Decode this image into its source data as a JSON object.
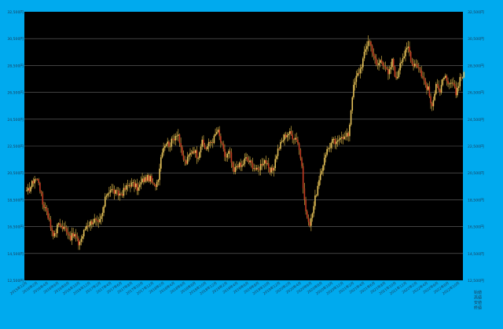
{
  "colors": {
    "frame": "#00aaee",
    "plot_background": "#000000",
    "gridline": "#6a6a6a",
    "candle_body": "#e6c25a",
    "candle_wick": "#c9a640",
    "candle_down": "#c23b22",
    "tick_text": "#1a3a55"
  },
  "chart_data": {
    "type": "candlestick",
    "title": "",
    "xlabel": "",
    "ylabel": "",
    "currency_unit": "円",
    "ylim": [
      12500,
      32500
    ],
    "yticks": [
      "12,500円",
      "14,500円",
      "16,500円",
      "18,500円",
      "20,500円",
      "22,500円",
      "24,500円",
      "26,500円",
      "28,500円",
      "30,500円",
      "32,500円"
    ],
    "grid": true,
    "legend_position": "bottom-right",
    "legend_entries": [
      "始値",
      "高値",
      "安値",
      "終値"
    ],
    "x_tick_labels": [
      "2015年12月",
      "2016年2月",
      "2016年4月",
      "2016年6月",
      "2016年8月",
      "2016年10月",
      "2016年12月",
      "2017年2月",
      "2017年4月",
      "2017年6月",
      "2017年8月",
      "2017年10月",
      "2017年12月",
      "2018年2月",
      "2018年4月",
      "2018年6月",
      "2018年8月",
      "2018年10月",
      "2018年12月",
      "2019年2月",
      "2019年4月",
      "2019年6月",
      "2019年8月",
      "2019年10月",
      "2019年12月",
      "2020年2月",
      "2020年4月",
      "2020年6月",
      "2020年8月",
      "2020年10月",
      "2020年12月",
      "2021年2月",
      "2021年4月",
      "2021年6月",
      "2021年8月",
      "2021年10月",
      "2021年12月",
      "2022年2月",
      "2022年4月",
      "2022年6月",
      "2022年8月",
      "2022年10月"
    ],
    "price_path": [
      19000,
      19500,
      20100,
      19900,
      18200,
      17800,
      16500,
      15800,
      16800,
      16400,
      16300,
      15700,
      15900,
      15200,
      15800,
      16600,
      16800,
      17000,
      16600,
      17400,
      18900,
      19300,
      19100,
      18900,
      19000,
      19400,
      19700,
      19600,
      19300,
      19900,
      20100,
      20100,
      19400,
      20000,
      22200,
      22800,
      22600,
      23100,
      23600,
      21800,
      21200,
      21900,
      22300,
      21700,
      22800,
      22300,
      22700,
      23000,
      23700,
      22600,
      21600,
      22100,
      20400,
      21200,
      20900,
      21600,
      21300,
      21000,
      20600,
      21200,
      21500,
      20500,
      20800,
      22100,
      22700,
      23300,
      23500,
      23200,
      23100,
      21500,
      18000,
      16500,
      17800,
      19200,
      20300,
      21900,
      22400,
      22900,
      22600,
      23400,
      23100,
      23400,
      26600,
      27700,
      28300,
      29400,
      30500,
      29600,
      28400,
      28900,
      28600,
      27700,
      28900,
      27300,
      28900,
      29300,
      29900,
      28600,
      28700,
      28100,
      27300,
      26700,
      25200,
      27400,
      26400,
      27800,
      26900,
      27200,
      26400,
      27600,
      27800
    ]
  }
}
